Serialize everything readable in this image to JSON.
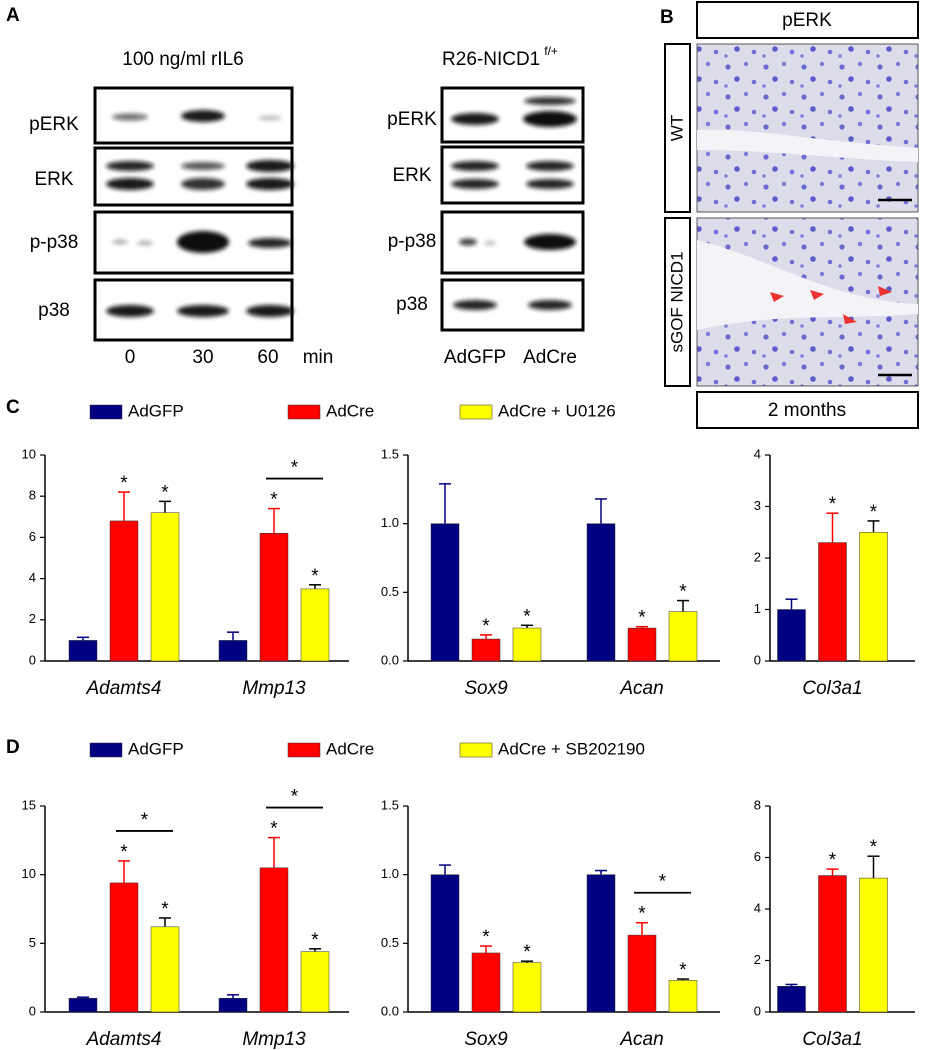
{
  "panel_a": {
    "label": "A",
    "left_blot": {
      "title": "100 ng/ml rIL6",
      "rows": [
        "pERK",
        "ERK",
        "p-p38",
        "p38"
      ],
      "lanes": [
        0,
        30,
        60
      ],
      "lane_unit": "min"
    },
    "right_blot": {
      "title": "R26-NICD1",
      "title_superscript": "f/+",
      "rows": [
        "pERK",
        "ERK",
        "p-p38",
        "p38"
      ],
      "lanes": [
        "AdGFP",
        "AdCre"
      ]
    }
  },
  "panel_b": {
    "label": "B",
    "stain": "pERK",
    "rows": [
      "WT",
      "sGOF NICD1"
    ],
    "age": "2 months"
  },
  "panel_c_label": "C",
  "panel_d_label": "D",
  "chart_data": [
    {
      "type": "bar",
      "categories": [
        "Adamts4",
        "Mmp13"
      ],
      "ylim": [
        0,
        10
      ],
      "yticks": [
        0,
        2,
        4,
        6,
        8,
        10
      ],
      "significance_mark": "*",
      "series": [
        {
          "name": "AdGFP",
          "color": "#000080",
          "values": [
            1,
            1
          ],
          "errors": [
            0.15,
            0.4
          ],
          "starred": [
            false,
            false
          ]
        },
        {
          "name": "AdCre",
          "color": "#ff0000",
          "values": [
            6.8,
            6.2
          ],
          "errors": [
            1.4,
            1.2
          ],
          "starred": [
            true,
            true
          ]
        },
        {
          "name": "AdCre + U0126",
          "color": "#ffff00",
          "values": [
            7.2,
            3.5
          ],
          "errors": [
            0.55,
            0.2
          ],
          "starred": [
            true,
            true
          ]
        }
      ],
      "comparisons": [
        {
          "category": "Mmp13",
          "between": [
            "AdCre",
            "AdCre + U0126"
          ],
          "label": "*"
        }
      ]
    },
    {
      "type": "bar",
      "categories": [
        "Sox9",
        "Acan"
      ],
      "ylim": [
        0,
        1.5
      ],
      "yticks": [
        {
          "value": 0,
          "label": "0.0"
        },
        0.5,
        {
          "value": 1,
          "label": "1.0"
        },
        1.5
      ],
      "significance_mark": "*",
      "series": [
        {
          "name": "AdGFP",
          "color": "#000080",
          "values": [
            1,
            1
          ],
          "errors": [
            0.29,
            0.18
          ],
          "starred": [
            false,
            false
          ]
        },
        {
          "name": "AdCre",
          "color": "#ff0000",
          "values": [
            0.16,
            0.24
          ],
          "errors": [
            0.03,
            0.01
          ],
          "starred": [
            true,
            true
          ]
        },
        {
          "name": "AdCre + U0126",
          "color": "#ffff00",
          "values": [
            0.24,
            0.36
          ],
          "errors": [
            0.02,
            0.08
          ],
          "starred": [
            true,
            true
          ]
        }
      ],
      "comparisons": []
    },
    {
      "type": "bar",
      "categories": [
        "Col3a1"
      ],
      "ylim": [
        0,
        4
      ],
      "yticks": [
        0,
        1,
        2,
        3,
        4
      ],
      "significance_mark": "*",
      "series": [
        {
          "name": "AdGFP",
          "color": "#000080",
          "values": [
            1
          ],
          "errors": [
            0.2
          ],
          "starred": [
            false
          ]
        },
        {
          "name": "AdCre",
          "color": "#ff0000",
          "values": [
            2.3
          ],
          "errors": [
            0.57
          ],
          "starred": [
            true
          ]
        },
        {
          "name": "AdCre + U0126",
          "color": "#ffff00",
          "values": [
            2.5
          ],
          "errors": [
            0.22
          ],
          "starred": [
            true
          ]
        }
      ],
      "comparisons": []
    },
    {
      "type": "bar",
      "categories": [
        "Adamts4",
        "Mmp13"
      ],
      "ylim": [
        0,
        15
      ],
      "yticks": [
        0,
        5,
        10,
        15
      ],
      "significance_mark": "*",
      "series": [
        {
          "name": "AdGFP",
          "color": "#000080",
          "values": [
            1,
            1
          ],
          "errors": [
            0.08,
            0.25
          ],
          "starred": [
            false,
            false
          ]
        },
        {
          "name": "AdCre",
          "color": "#ff0000",
          "values": [
            9.4,
            10.5
          ],
          "errors": [
            1.6,
            2.2
          ],
          "starred": [
            true,
            true
          ]
        },
        {
          "name": "AdCre + SB202190",
          "color": "#ffff00",
          "values": [
            6.2,
            4.4
          ],
          "errors": [
            0.65,
            0.2
          ],
          "starred": [
            true,
            true
          ]
        }
      ],
      "comparisons": [
        {
          "category": "Adamts4",
          "between": [
            "AdCre",
            "AdCre + SB202190"
          ],
          "label": "*"
        },
        {
          "category": "Mmp13",
          "between": [
            "AdCre",
            "AdCre + SB202190"
          ],
          "label": "*"
        }
      ]
    },
    {
      "type": "bar",
      "categories": [
        "Sox9",
        "Acan"
      ],
      "ylim": [
        0,
        1.5
      ],
      "yticks": [
        {
          "value": 0,
          "label": "0.0"
        },
        0.5,
        {
          "value": 1,
          "label": "1.0"
        },
        1.5
      ],
      "significance_mark": "*",
      "series": [
        {
          "name": "AdGFP",
          "color": "#000080",
          "values": [
            1,
            1
          ],
          "errors": [
            0.07,
            0.03
          ],
          "starred": [
            false,
            false
          ]
        },
        {
          "name": "AdCre",
          "color": "#ff0000",
          "values": [
            0.43,
            0.56
          ],
          "errors": [
            0.05,
            0.09
          ],
          "starred": [
            true,
            true
          ]
        },
        {
          "name": "AdCre + SB202190",
          "color": "#ffff00",
          "values": [
            0.36,
            0.23
          ],
          "errors": [
            0.01,
            0.01
          ],
          "starred": [
            true,
            true
          ]
        }
      ],
      "comparisons": [
        {
          "category": "Acan",
          "between": [
            "AdCre",
            "AdCre + SB202190"
          ],
          "label": "*"
        }
      ]
    },
    {
      "type": "bar",
      "categories": [
        "Col3a1"
      ],
      "ylim": [
        0,
        8
      ],
      "yticks": [
        0,
        2,
        4,
        6,
        8
      ],
      "significance_mark": "*",
      "series": [
        {
          "name": "AdGFP",
          "color": "#000080",
          "values": [
            1
          ],
          "errors": [
            0.07
          ],
          "starred": [
            false
          ]
        },
        {
          "name": "AdCre",
          "color": "#ff0000",
          "values": [
            5.3
          ],
          "errors": [
            0.25
          ],
          "starred": [
            true
          ]
        },
        {
          "name": "AdCre + SB202190",
          "color": "#ffff00",
          "values": [
            5.2
          ],
          "errors": [
            0.85
          ],
          "starred": [
            true
          ]
        }
      ],
      "comparisons": []
    }
  ]
}
